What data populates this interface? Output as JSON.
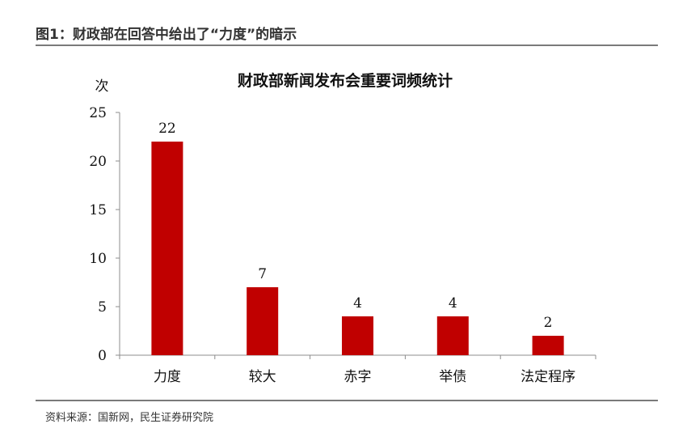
{
  "figure": {
    "title": "图1：财政部在回答中给出了“力度”的暗示",
    "source": "资料来源：国新网，民生证券研究院"
  },
  "chart_data": {
    "type": "bar",
    "title": "财政部新闻发布会重要词频统计",
    "ylabel": "次",
    "xlabel": "",
    "categories": [
      "力度",
      "较大",
      "赤字",
      "举债",
      "法定程序"
    ],
    "values": [
      22,
      7,
      4,
      4,
      2
    ],
    "data_labels": [
      "22",
      "7",
      "4",
      "4",
      "2"
    ],
    "ylim": [
      0,
      25
    ],
    "yticks": [
      0,
      5,
      10,
      15,
      20,
      25
    ],
    "ytick_labels": [
      "0",
      "5",
      "10",
      "15",
      "20",
      "25"
    ],
    "grid": false,
    "legend": "none",
    "bar_color": "#c00000",
    "axis_color": "#8c8c8c"
  }
}
